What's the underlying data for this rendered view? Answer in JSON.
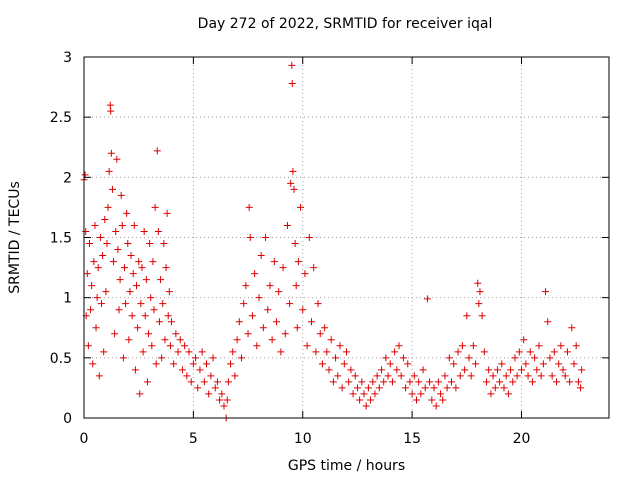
{
  "chart_data": {
    "type": "scatter",
    "title": "Day 272 of 2022, SRMTID for receiver iqal",
    "xlabel": "GPS time / hours",
    "ylabel": "SRMTID / TECUs",
    "xlim": [
      0,
      24
    ],
    "ylim": [
      0,
      3
    ],
    "xticks": [
      0,
      5,
      10,
      15,
      20
    ],
    "xtick_labels": [
      "0",
      "5",
      "10",
      "15",
      "20"
    ],
    "yticks": [
      0,
      0.5,
      1,
      1.5,
      2,
      2.5,
      3
    ],
    "ytick_labels": [
      "0",
      "0.5",
      "1",
      "1.5",
      "2",
      "2.5",
      "3"
    ],
    "grid": true,
    "marker": "+",
    "color": "#dd0000",
    "series": [
      {
        "name": "SRMTID",
        "points": [
          [
            0.0,
            1.98
          ],
          [
            0.05,
            2.02
          ],
          [
            0.08,
            1.55
          ],
          [
            0.1,
            0.85
          ],
          [
            0.15,
            1.2
          ],
          [
            0.2,
            0.6
          ],
          [
            0.25,
            1.45
          ],
          [
            0.3,
            0.9
          ],
          [
            0.35,
            1.1
          ],
          [
            0.4,
            0.45
          ],
          [
            0.45,
            1.3
          ],
          [
            0.5,
            1.6
          ],
          [
            0.55,
            0.75
          ],
          [
            0.6,
            1.0
          ],
          [
            0.65,
            1.25
          ],
          [
            0.7,
            0.35
          ],
          [
            0.75,
            1.5
          ],
          [
            0.8,
            0.95
          ],
          [
            0.85,
            1.35
          ],
          [
            0.9,
            0.55
          ],
          [
            0.95,
            1.65
          ],
          [
            1.0,
            1.05
          ],
          [
            1.05,
            1.45
          ],
          [
            1.1,
            1.75
          ],
          [
            1.15,
            2.05
          ],
          [
            1.2,
            2.6
          ],
          [
            1.22,
            2.55
          ],
          [
            1.25,
            2.2
          ],
          [
            1.3,
            1.9
          ],
          [
            1.35,
            1.3
          ],
          [
            1.4,
            0.7
          ],
          [
            1.45,
            1.55
          ],
          [
            1.5,
            2.15
          ],
          [
            1.55,
            1.4
          ],
          [
            1.6,
            0.9
          ],
          [
            1.65,
            1.15
          ],
          [
            1.7,
            1.85
          ],
          [
            1.75,
            1.6
          ],
          [
            1.8,
            0.5
          ],
          [
            1.85,
            1.25
          ],
          [
            1.9,
            0.95
          ],
          [
            1.95,
            1.7
          ],
          [
            2.0,
            1.45
          ],
          [
            2.05,
            0.65
          ],
          [
            2.1,
            1.05
          ],
          [
            2.15,
            1.35
          ],
          [
            2.2,
            0.85
          ],
          [
            2.25,
            1.2
          ],
          [
            2.3,
            1.6
          ],
          [
            2.35,
            0.4
          ],
          [
            2.4,
            1.1
          ],
          [
            2.45,
            0.75
          ],
          [
            2.5,
            1.3
          ],
          [
            2.55,
            0.2
          ],
          [
            2.6,
            0.95
          ],
          [
            2.65,
            1.25
          ],
          [
            2.7,
            0.55
          ],
          [
            2.75,
            1.55
          ],
          [
            2.8,
            0.85
          ],
          [
            2.85,
            1.15
          ],
          [
            2.9,
            0.3
          ],
          [
            2.95,
            0.7
          ],
          [
            3.0,
            1.45
          ],
          [
            3.05,
            1.0
          ],
          [
            3.1,
            0.6
          ],
          [
            3.15,
            1.3
          ],
          [
            3.2,
            0.9
          ],
          [
            3.25,
            1.75
          ],
          [
            3.3,
            0.45
          ],
          [
            3.35,
            2.22
          ],
          [
            3.4,
            1.55
          ],
          [
            3.45,
            0.8
          ],
          [
            3.5,
            1.15
          ],
          [
            3.55,
            0.5
          ],
          [
            3.6,
            0.95
          ],
          [
            3.65,
            1.45
          ],
          [
            3.7,
            0.65
          ],
          [
            3.75,
            1.25
          ],
          [
            3.8,
            1.7
          ],
          [
            3.85,
            0.85
          ],
          [
            3.9,
            1.05
          ],
          [
            3.95,
            0.6
          ],
          [
            4.0,
            0.8
          ],
          [
            4.1,
            0.45
          ],
          [
            4.2,
            0.7
          ],
          [
            4.3,
            0.55
          ],
          [
            4.4,
            0.65
          ],
          [
            4.5,
            0.4
          ],
          [
            4.6,
            0.6
          ],
          [
            4.7,
            0.35
          ],
          [
            4.8,
            0.55
          ],
          [
            4.9,
            0.3
          ],
          [
            5.0,
            0.45
          ],
          [
            5.1,
            0.5
          ],
          [
            5.2,
            0.25
          ],
          [
            5.3,
            0.4
          ],
          [
            5.4,
            0.55
          ],
          [
            5.5,
            0.3
          ],
          [
            5.6,
            0.45
          ],
          [
            5.7,
            0.2
          ],
          [
            5.8,
            0.35
          ],
          [
            5.9,
            0.5
          ],
          [
            6.0,
            0.25
          ],
          [
            6.1,
            0.3
          ],
          [
            6.2,
            0.15
          ],
          [
            6.3,
            0.2
          ],
          [
            6.4,
            0.1
          ],
          [
            6.5,
            0.0
          ],
          [
            6.55,
            0.15
          ],
          [
            6.6,
            0.3
          ],
          [
            6.7,
            0.45
          ],
          [
            6.8,
            0.55
          ],
          [
            6.9,
            0.35
          ],
          [
            7.0,
            0.65
          ],
          [
            7.1,
            0.8
          ],
          [
            7.2,
            0.5
          ],
          [
            7.3,
            0.95
          ],
          [
            7.4,
            1.1
          ],
          [
            7.5,
            0.7
          ],
          [
            7.55,
            1.75
          ],
          [
            7.6,
            1.5
          ],
          [
            7.7,
            0.85
          ],
          [
            7.8,
            1.2
          ],
          [
            7.9,
            0.6
          ],
          [
            8.0,
            1.0
          ],
          [
            8.1,
            1.35
          ],
          [
            8.2,
            0.75
          ],
          [
            8.3,
            1.5
          ],
          [
            8.4,
            0.9
          ],
          [
            8.5,
            1.1
          ],
          [
            8.6,
            0.65
          ],
          [
            8.7,
            1.3
          ],
          [
            8.8,
            0.8
          ],
          [
            8.9,
            1.05
          ],
          [
            9.0,
            0.55
          ],
          [
            9.1,
            1.25
          ],
          [
            9.2,
            0.7
          ],
          [
            9.3,
            1.6
          ],
          [
            9.4,
            0.95
          ],
          [
            9.45,
            1.95
          ],
          [
            9.5,
            2.93
          ],
          [
            9.52,
            2.78
          ],
          [
            9.55,
            2.05
          ],
          [
            9.6,
            1.9
          ],
          [
            9.65,
            1.45
          ],
          [
            9.7,
            1.1
          ],
          [
            9.75,
            0.75
          ],
          [
            9.8,
            1.3
          ],
          [
            9.9,
            1.75
          ],
          [
            10.0,
            0.9
          ],
          [
            10.1,
            1.2
          ],
          [
            10.2,
            0.6
          ],
          [
            10.3,
            1.5
          ],
          [
            10.4,
            0.8
          ],
          [
            10.5,
            1.25
          ],
          [
            10.6,
            0.55
          ],
          [
            10.7,
            0.95
          ],
          [
            10.8,
            0.7
          ],
          [
            10.9,
            0.45
          ],
          [
            11.0,
            0.75
          ],
          [
            11.1,
            0.55
          ],
          [
            11.2,
            0.4
          ],
          [
            11.3,
            0.65
          ],
          [
            11.4,
            0.3
          ],
          [
            11.5,
            0.5
          ],
          [
            11.6,
            0.35
          ],
          [
            11.7,
            0.6
          ],
          [
            11.8,
            0.25
          ],
          [
            11.9,
            0.45
          ],
          [
            12.0,
            0.55
          ],
          [
            12.1,
            0.3
          ],
          [
            12.2,
            0.4
          ],
          [
            12.3,
            0.2
          ],
          [
            12.4,
            0.35
          ],
          [
            12.5,
            0.25
          ],
          [
            12.6,
            0.15
          ],
          [
            12.7,
            0.3
          ],
          [
            12.8,
            0.2
          ],
          [
            12.9,
            0.1
          ],
          [
            13.0,
            0.25
          ],
          [
            13.1,
            0.15
          ],
          [
            13.2,
            0.3
          ],
          [
            13.3,
            0.2
          ],
          [
            13.4,
            0.35
          ],
          [
            13.5,
            0.25
          ],
          [
            13.6,
            0.4
          ],
          [
            13.7,
            0.3
          ],
          [
            13.8,
            0.5
          ],
          [
            13.9,
            0.35
          ],
          [
            14.0,
            0.45
          ],
          [
            14.1,
            0.3
          ],
          [
            14.2,
            0.55
          ],
          [
            14.3,
            0.4
          ],
          [
            14.4,
            0.6
          ],
          [
            14.5,
            0.35
          ],
          [
            14.6,
            0.5
          ],
          [
            14.7,
            0.25
          ],
          [
            14.8,
            0.45
          ],
          [
            14.9,
            0.3
          ],
          [
            15.0,
            0.2
          ],
          [
            15.1,
            0.35
          ],
          [
            15.2,
            0.15
          ],
          [
            15.3,
            0.3
          ],
          [
            15.4,
            0.2
          ],
          [
            15.5,
            0.4
          ],
          [
            15.6,
            0.25
          ],
          [
            15.7,
            0.99
          ],
          [
            15.8,
            0.3
          ],
          [
            15.9,
            0.15
          ],
          [
            16.0,
            0.25
          ],
          [
            16.1,
            0.1
          ],
          [
            16.2,
            0.3
          ],
          [
            16.3,
            0.2
          ],
          [
            16.4,
            0.15
          ],
          [
            16.5,
            0.35
          ],
          [
            16.6,
            0.25
          ],
          [
            16.7,
            0.5
          ],
          [
            16.8,
            0.3
          ],
          [
            16.9,
            0.45
          ],
          [
            17.0,
            0.25
          ],
          [
            17.1,
            0.55
          ],
          [
            17.2,
            0.35
          ],
          [
            17.3,
            0.6
          ],
          [
            17.4,
            0.4
          ],
          [
            17.5,
            0.85
          ],
          [
            17.6,
            0.5
          ],
          [
            17.7,
            0.35
          ],
          [
            17.8,
            0.6
          ],
          [
            17.9,
            0.45
          ],
          [
            18.0,
            1.12
          ],
          [
            18.05,
            0.95
          ],
          [
            18.1,
            1.05
          ],
          [
            18.2,
            0.85
          ],
          [
            18.3,
            0.55
          ],
          [
            18.4,
            0.3
          ],
          [
            18.5,
            0.4
          ],
          [
            18.6,
            0.2
          ],
          [
            18.7,
            0.35
          ],
          [
            18.8,
            0.25
          ],
          [
            18.9,
            0.4
          ],
          [
            19.0,
            0.3
          ],
          [
            19.1,
            0.45
          ],
          [
            19.2,
            0.25
          ],
          [
            19.3,
            0.35
          ],
          [
            19.4,
            0.2
          ],
          [
            19.5,
            0.4
          ],
          [
            19.6,
            0.3
          ],
          [
            19.7,
            0.5
          ],
          [
            19.8,
            0.35
          ],
          [
            19.9,
            0.55
          ],
          [
            20.0,
            0.4
          ],
          [
            20.1,
            0.65
          ],
          [
            20.2,
            0.45
          ],
          [
            20.3,
            0.35
          ],
          [
            20.4,
            0.55
          ],
          [
            20.5,
            0.3
          ],
          [
            20.6,
            0.5
          ],
          [
            20.7,
            0.4
          ],
          [
            20.8,
            0.6
          ],
          [
            20.9,
            0.35
          ],
          [
            21.0,
            0.45
          ],
          [
            21.1,
            1.05
          ],
          [
            21.2,
            0.8
          ],
          [
            21.3,
            0.5
          ],
          [
            21.4,
            0.35
          ],
          [
            21.5,
            0.55
          ],
          [
            21.6,
            0.3
          ],
          [
            21.7,
            0.45
          ],
          [
            21.8,
            0.6
          ],
          [
            21.9,
            0.4
          ],
          [
            22.0,
            0.35
          ],
          [
            22.1,
            0.55
          ],
          [
            22.2,
            0.3
          ],
          [
            22.3,
            0.75
          ],
          [
            22.4,
            0.45
          ],
          [
            22.5,
            0.6
          ],
          [
            22.6,
            0.3
          ],
          [
            22.7,
            0.25
          ],
          [
            22.75,
            0.4
          ]
        ]
      }
    ]
  }
}
